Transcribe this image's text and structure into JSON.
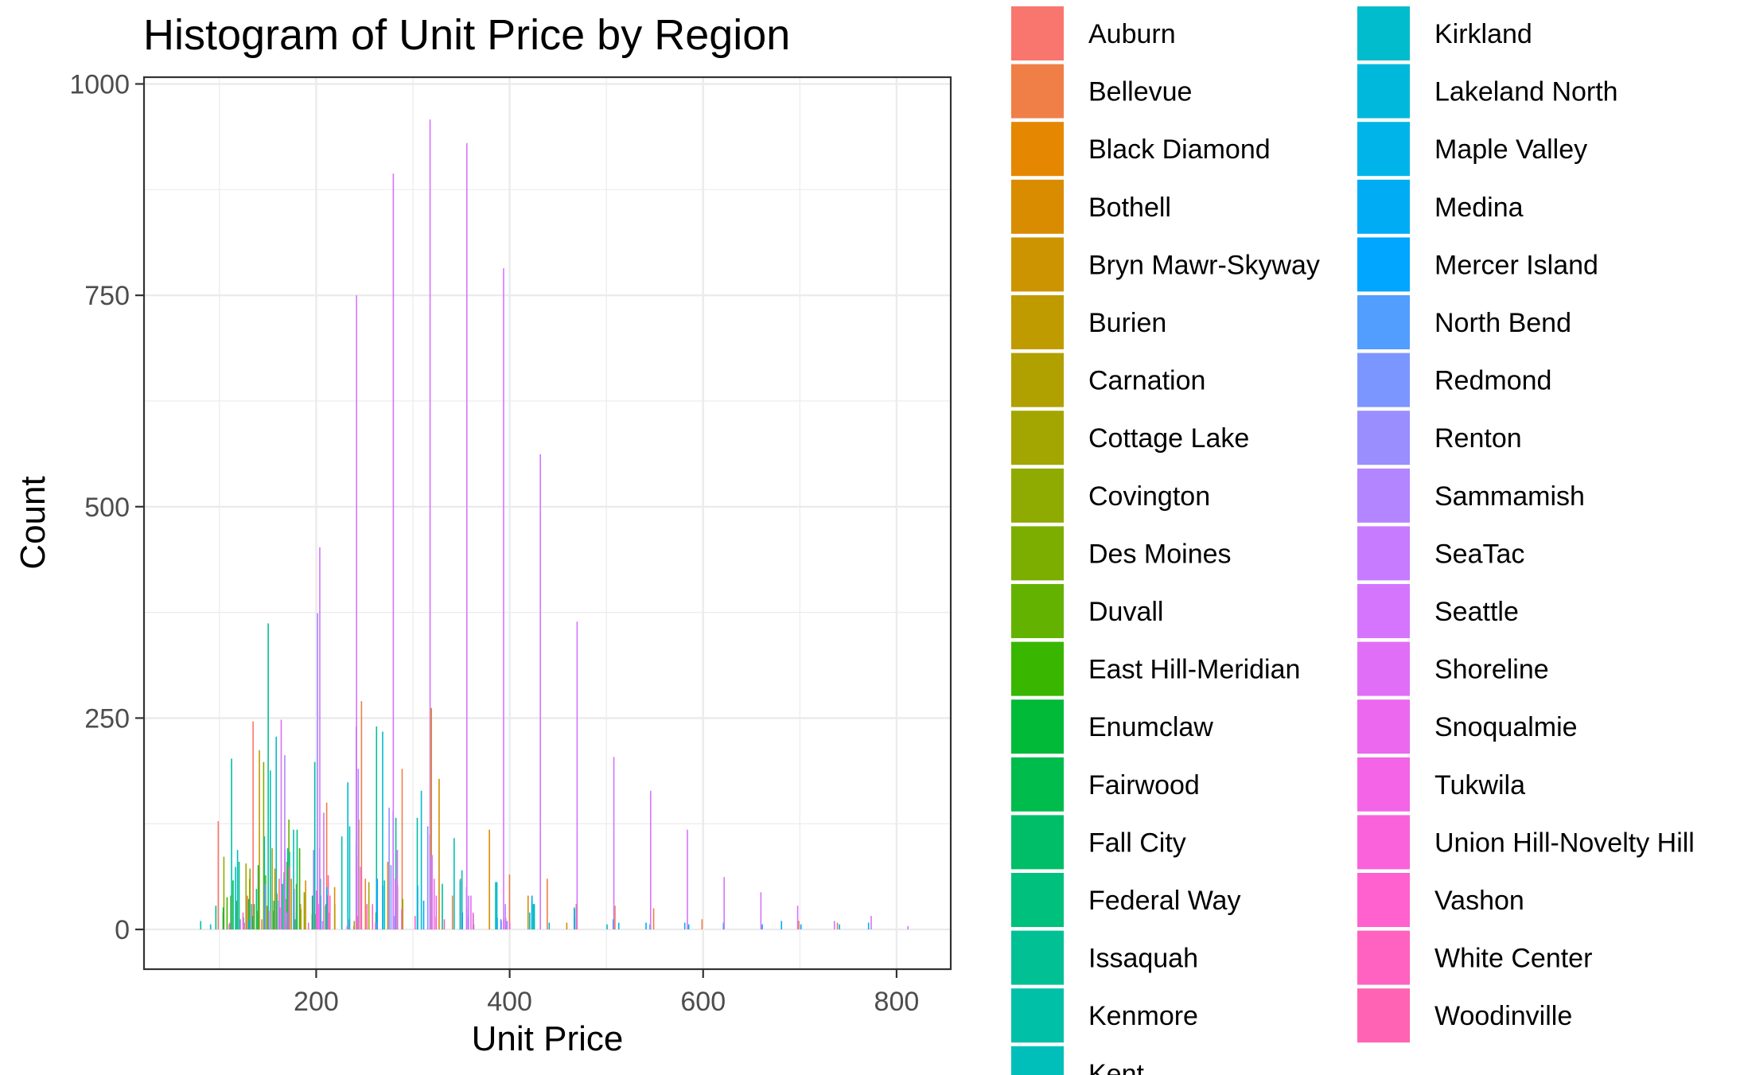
{
  "chart_data": {
    "type": "bar",
    "title": "Histogram of Unit Price by Region",
    "xlabel": "Unit Price",
    "ylabel": "Count",
    "xlim": [
      22,
      856
    ],
    "ylim": [
      -47,
      1008
    ],
    "x_ticks": [
      200,
      400,
      600,
      800
    ],
    "x_tick_labels": [
      "200",
      "400",
      "600",
      "800"
    ],
    "y_ticks": [
      0,
      250,
      500,
      750,
      1000
    ],
    "y_tick_labels": [
      "0",
      "250",
      "500",
      "750",
      "1000"
    ],
    "grid": true,
    "legend_position": "right",
    "series": [
      {
        "name": "Auburn",
        "color": "#F8766D",
        "points": [
          [
            100,
            128
          ],
          [
            105,
            20
          ],
          [
            112,
            8
          ],
          [
            136,
            246
          ],
          [
            145,
            12
          ],
          [
            163,
            60
          ],
          [
            206,
            30
          ],
          [
            215,
            20
          ],
          [
            245,
            6
          ]
        ]
      },
      {
        "name": "Bellevue",
        "color": "#EF7F47",
        "points": [
          [
            130,
            40
          ],
          [
            185,
            30
          ],
          [
            212,
            150
          ],
          [
            248,
            270
          ],
          [
            252,
            60
          ],
          [
            290,
            190
          ],
          [
            325,
            15
          ],
          [
            342,
            40
          ],
          [
            364,
            6
          ],
          [
            401,
            65
          ],
          [
            440,
            60
          ],
          [
            470,
            30
          ],
          [
            510,
            28
          ],
          [
            550,
            25
          ],
          [
            600,
            12
          ],
          [
            700,
            10
          ],
          [
            740,
            8
          ]
        ]
      },
      {
        "name": "Black Diamond",
        "color": "#E58700",
        "points": [
          [
            140,
            12
          ],
          [
            170,
            8
          ],
          [
            205,
            5
          ],
          [
            240,
            4
          ]
        ]
      },
      {
        "name": "Bothell",
        "color": "#D98C00",
        "points": [
          [
            160,
            44
          ],
          [
            190,
            58
          ],
          [
            220,
            50
          ],
          [
            245,
            130
          ],
          [
            275,
            80
          ],
          [
            320,
            262
          ],
          [
            328,
            178
          ],
          [
            350,
            60
          ],
          [
            380,
            118
          ],
          [
            420,
            40
          ],
          [
            460,
            8
          ]
        ]
      },
      {
        "name": "Bryn Mawr-Skyway",
        "color": "#CC9400",
        "points": [
          [
            132,
            60
          ],
          [
            160,
            20
          ],
          [
            170,
            36
          ],
          [
            205,
            14
          ]
        ]
      },
      {
        "name": "Burien",
        "color": "#C09B00",
        "points": [
          [
            142,
            212
          ],
          [
            150,
            28
          ],
          [
            158,
            72
          ],
          [
            175,
            60
          ],
          [
            185,
            24
          ],
          [
            220,
            30
          ],
          [
            262,
            8
          ]
        ]
      },
      {
        "name": "Carnation",
        "color": "#B0A000",
        "points": [
          [
            140,
            22
          ],
          [
            160,
            14
          ],
          [
            200,
            18
          ],
          [
            240,
            10
          ]
        ]
      },
      {
        "name": "Cottage Lake",
        "color": "#A3A500",
        "points": [
          [
            128,
            78
          ],
          [
            155,
            96
          ],
          [
            180,
            54
          ],
          [
            212,
            40
          ],
          [
            255,
            56
          ],
          [
            290,
            36
          ]
        ]
      },
      {
        "name": "Covington",
        "color": "#8FAA00",
        "points": [
          [
            105,
            86
          ],
          [
            132,
            72
          ],
          [
            160,
            42
          ],
          [
            180,
            20
          ]
        ]
      },
      {
        "name": "Des Moines",
        "color": "#7CAE00",
        "points": [
          [
            112,
            40
          ],
          [
            146,
            198
          ],
          [
            170,
            80
          ],
          [
            188,
            44
          ]
        ]
      },
      {
        "name": "Duvall",
        "color": "#64B200",
        "points": [
          [
            118,
            34
          ],
          [
            148,
            64
          ],
          [
            172,
            130
          ],
          [
            210,
            28
          ],
          [
            262,
            20
          ]
        ]
      },
      {
        "name": "East Hill-Meridian",
        "color": "#39B600",
        "points": [
          [
            108,
            38
          ],
          [
            136,
            30
          ],
          [
            167,
            68
          ],
          [
            183,
            96
          ],
          [
            196,
            18
          ]
        ]
      },
      {
        "name": "Enumclaw",
        "color": "#00BA38",
        "points": [
          [
            104,
            26
          ],
          [
            134,
            16
          ],
          [
            156,
            22
          ],
          [
            178,
            12
          ]
        ]
      },
      {
        "name": "Fairwood",
        "color": "#00BC4C",
        "points": [
          [
            114,
            58
          ],
          [
            140,
            76
          ],
          [
            165,
            54
          ],
          [
            196,
            40
          ]
        ]
      },
      {
        "name": "Fall City",
        "color": "#00BE67",
        "points": [
          [
            130,
            36
          ],
          [
            170,
            50
          ],
          [
            210,
            30
          ],
          [
            262,
            20
          ]
        ]
      },
      {
        "name": "Federal Way",
        "color": "#00C07E",
        "points": [
          [
            96,
            28
          ],
          [
            120,
            80
          ],
          [
            138,
            48
          ],
          [
            156,
            34
          ],
          [
            180,
            118
          ]
        ]
      },
      {
        "name": "Issaquah",
        "color": "#00C094",
        "points": [
          [
            150,
            362
          ],
          [
            172,
            92
          ],
          [
            204,
            60
          ],
          [
            262,
            240
          ],
          [
            282,
            132
          ],
          [
            330,
            54
          ],
          [
            362,
            18
          ]
        ]
      },
      {
        "name": "Kenmore",
        "color": "#00C0A7",
        "points": [
          [
            112,
            202
          ],
          [
            146,
            110
          ],
          [
            170,
            96
          ],
          [
            198,
            198
          ],
          [
            226,
            110
          ],
          [
            304,
            132
          ],
          [
            385,
            56
          ],
          [
            425,
            30
          ]
        ]
      },
      {
        "name": "Kent",
        "color": "#00BFBA",
        "points": [
          [
            80,
            10
          ],
          [
            116,
            74
          ],
          [
            152,
            188
          ],
          [
            176,
            118
          ],
          [
            234,
            122
          ],
          [
            270,
            58
          ],
          [
            342,
            108
          ],
          [
            424,
            30
          ]
        ]
      },
      {
        "name": "Kirkland",
        "color": "#00BCCC",
        "points": [
          [
            118,
            94
          ],
          [
            158,
            228
          ],
          [
            204,
            40
          ],
          [
            232,
            174
          ],
          [
            268,
            234
          ],
          [
            308,
            164
          ],
          [
            350,
            70
          ],
          [
            420,
            20
          ],
          [
            500,
            6
          ]
        ]
      },
      {
        "name": "Lakeland North",
        "color": "#00B8DB",
        "points": [
          [
            90,
            6
          ],
          [
            124,
            14
          ],
          [
            166,
            60
          ],
          [
            200,
            36
          ],
          [
            262,
            58
          ],
          [
            348,
            58
          ],
          [
            386,
            56
          ],
          [
            466,
            26
          ],
          [
            512,
            8
          ]
        ]
      },
      {
        "name": "Maple Valley",
        "color": "#00B4E9",
        "points": [
          [
            130,
            12
          ],
          [
            176,
            28
          ],
          [
            210,
            50
          ],
          [
            268,
            52
          ],
          [
            304,
            52
          ],
          [
            390,
            12
          ],
          [
            440,
            8
          ]
        ]
      },
      {
        "name": "Medina",
        "color": "#00ADF5",
        "points": [
          [
            422,
            34
          ],
          [
            466,
            24
          ],
          [
            540,
            8
          ],
          [
            580,
            8
          ],
          [
            620,
            6
          ],
          [
            680,
            10
          ],
          [
            740,
            6
          ],
          [
            770,
            8
          ]
        ]
      },
      {
        "name": "Mercer Island",
        "color": "#00A6FF",
        "points": [
          [
            262,
            60
          ],
          [
            310,
            34
          ],
          [
            350,
            20
          ],
          [
            386,
            14
          ],
          [
            422,
            40
          ],
          [
            466,
            14
          ],
          [
            506,
            12
          ],
          [
            544,
            6
          ],
          [
            584,
            6
          ],
          [
            620,
            8
          ],
          [
            660,
            6
          ],
          [
            700,
            6
          ]
        ]
      },
      {
        "name": "North Bend",
        "color": "#529EFF",
        "points": [
          [
            132,
            30
          ],
          [
            176,
            48
          ],
          [
            232,
            12
          ],
          [
            280,
            16
          ]
        ]
      },
      {
        "name": "Redmond",
        "color": "#7C96FF",
        "points": [
          [
            160,
            34
          ],
          [
            196,
            94
          ],
          [
            240,
            104
          ],
          [
            276,
            76
          ],
          [
            314,
            122
          ],
          [
            356,
            16
          ],
          [
            396,
            10
          ]
        ]
      },
      {
        "name": "Renton",
        "color": "#9A8EFF",
        "points": [
          [
            146,
            54
          ],
          [
            200,
            374
          ],
          [
            240,
            240
          ],
          [
            274,
            144
          ],
          [
            318,
            86
          ],
          [
            354,
            50
          ],
          [
            390,
            10
          ]
        ]
      },
      {
        "name": "Sammamish",
        "color": "#B385FF",
        "points": [
          [
            166,
            206
          ],
          [
            202,
            96
          ],
          [
            242,
            190
          ],
          [
            278,
            140
          ],
          [
            316,
            112
          ],
          [
            356,
            40
          ],
          [
            394,
            30
          ]
        ]
      },
      {
        "name": "SeaTac",
        "color": "#C77CFF",
        "points": [
          [
            120,
            12
          ],
          [
            168,
            20
          ],
          [
            205,
            10
          ],
          [
            260,
            8
          ]
        ]
      },
      {
        "name": "Seattle",
        "color": "#D575FE",
        "points": [
          [
            124,
            8
          ],
          [
            166,
            94
          ],
          [
            202,
            452
          ],
          [
            240,
            750
          ],
          [
            278,
            894
          ],
          [
            316,
            958
          ],
          [
            354,
            930
          ],
          [
            392,
            782
          ],
          [
            430,
            562
          ],
          [
            468,
            364
          ],
          [
            506,
            204
          ],
          [
            544,
            164
          ],
          [
            582,
            118
          ],
          [
            620,
            62
          ],
          [
            658,
            44
          ],
          [
            696,
            28
          ],
          [
            734,
            10
          ],
          [
            772,
            16
          ],
          [
            810,
            4
          ]
        ]
      },
      {
        "name": "Shoreline",
        "color": "#E16EF7",
        "points": [
          [
            162,
            248
          ],
          [
            206,
            138
          ],
          [
            240,
            86
          ],
          [
            280,
            60
          ],
          [
            318,
            88
          ],
          [
            354,
            26
          ],
          [
            392,
            12
          ]
        ]
      },
      {
        "name": "Snoqualmie",
        "color": "#EB68EF",
        "points": [
          [
            200,
            24
          ],
          [
            244,
            74
          ],
          [
            282,
            94
          ],
          [
            320,
            60
          ],
          [
            358,
            40
          ],
          [
            394,
            14
          ]
        ]
      },
      {
        "name": "Tukwila",
        "color": "#F365E6",
        "points": [
          [
            108,
            6
          ],
          [
            150,
            22
          ],
          [
            190,
            8
          ],
          [
            230,
            4
          ]
        ]
      },
      {
        "name": "Union Hill-Novelty Hill",
        "color": "#FA62DB",
        "points": [
          [
            200,
            30
          ],
          [
            244,
            64
          ],
          [
            282,
            52
          ],
          [
            322,
            40
          ],
          [
            360,
            20
          ],
          [
            398,
            8
          ]
        ]
      },
      {
        "name": "Vashon",
        "color": "#FF61CF",
        "points": [
          [
            170,
            54
          ],
          [
            212,
            40
          ],
          [
            256,
            30
          ],
          [
            300,
            16
          ]
        ]
      },
      {
        "name": "White Center",
        "color": "#FF62C1",
        "points": [
          [
            122,
            20
          ],
          [
            160,
            26
          ],
          [
            198,
            46
          ],
          [
            240,
            16
          ]
        ]
      },
      {
        "name": "Woodinville",
        "color": "#FF63B3",
        "points": [
          [
            170,
            74
          ],
          [
            210,
            64
          ],
          [
            250,
            30
          ],
          [
            286,
            24
          ],
          [
            330,
            12
          ]
        ]
      }
    ]
  }
}
